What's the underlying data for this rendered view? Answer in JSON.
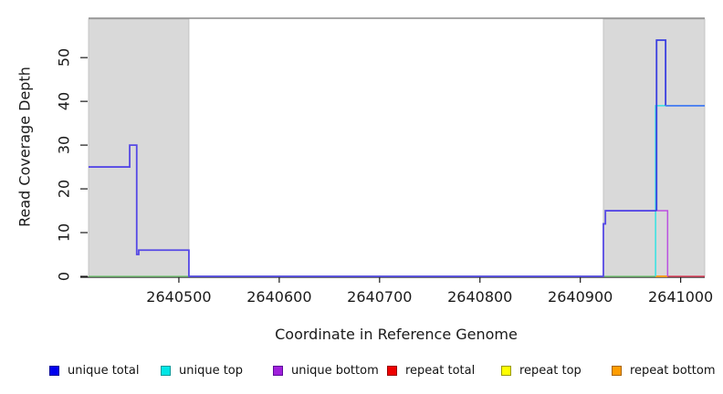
{
  "chart_data": {
    "type": "line",
    "title": "",
    "xlabel": "Coordinate in Reference Genome",
    "ylabel": "Read Coverage Depth",
    "xlim": [
      2640410,
      2641024
    ],
    "ylim": [
      0,
      59
    ],
    "x_ticks": [
      2640500,
      2640600,
      2640700,
      2640800,
      2640900,
      2641000
    ],
    "y_ticks": [
      0,
      10,
      20,
      30,
      40,
      50
    ],
    "grid": false,
    "legend_position": "bottom",
    "plot_top_border_color": "#8a8a8a",
    "shaded_region_color": "#d9d9d9",
    "shaded_region_border": "#bdbdbd",
    "axis_color": "#1a1a1a",
    "shaded_regions": [
      {
        "x0": 2640410,
        "x1": 2640510
      },
      {
        "x0": 2640923,
        "x1": 2641024
      }
    ],
    "series": [
      {
        "name": "zero-line-green",
        "color": "#7dc87d",
        "width": 1.5,
        "points": [
          [
            2640410,
            0
          ],
          [
            2640975,
            0
          ]
        ]
      },
      {
        "name": "zero-line-orange",
        "color": "#ff9d1e",
        "width": 2.0,
        "points": [
          [
            2640975,
            0
          ],
          [
            2640987,
            0
          ]
        ]
      },
      {
        "name": "zero-line-red",
        "color": "#e04560",
        "width": 1.6,
        "points": [
          [
            2640987,
            0
          ],
          [
            2641024,
            0
          ]
        ]
      },
      {
        "name": "unique-top",
        "color": "#35e3e3",
        "width": 1.5,
        "points": [
          [
            2640975,
            0
          ],
          [
            2640975,
            39
          ],
          [
            2640985,
            39
          ]
        ]
      },
      {
        "name": "unique-bottom",
        "color": "#bb50e0",
        "width": 1.5,
        "points": [
          [
            2640976,
            15
          ],
          [
            2640987,
            15
          ],
          [
            2640987,
            0
          ]
        ]
      },
      {
        "name": "unique-total-main",
        "color": "#5548e5",
        "width": 1.8,
        "points": [
          [
            2640410,
            25
          ],
          [
            2640451,
            25
          ],
          [
            2640451,
            30
          ],
          [
            2640458,
            30
          ],
          [
            2640458,
            5
          ],
          [
            2640460,
            5
          ],
          [
            2640460,
            6
          ],
          [
            2640510,
            6
          ],
          [
            2640510,
            0
          ],
          [
            2640923,
            0
          ],
          [
            2640923,
            12
          ],
          [
            2640925,
            12
          ],
          [
            2640925,
            15
          ],
          [
            2640976,
            15
          ]
        ]
      },
      {
        "name": "unique-total-peak",
        "color": "#3a3fe0",
        "width": 1.8,
        "points": [
          [
            2640976,
            15
          ],
          [
            2640976,
            54
          ],
          [
            2640985,
            54
          ],
          [
            2640985,
            39
          ]
        ]
      },
      {
        "name": "unique-total-right",
        "color": "#4b80f0",
        "width": 1.8,
        "points": [
          [
            2640985,
            39
          ],
          [
            2641024,
            39
          ]
        ]
      }
    ],
    "legend": [
      {
        "label": "unique total",
        "fill": "#0000ee",
        "border": "#000099"
      },
      {
        "label": "unique top",
        "fill": "#00e6e6",
        "border": "#009999"
      },
      {
        "label": "unique bottom",
        "fill": "#a020db",
        "border": "#5c0a99"
      },
      {
        "label": "repeat total",
        "fill": "#ee0000",
        "border": "#990000"
      },
      {
        "label": "repeat top",
        "fill": "#ffff00",
        "border": "#9a9a00"
      },
      {
        "label": "repeat bottom",
        "fill": "#ff9d00",
        "border": "#a86400"
      }
    ]
  }
}
